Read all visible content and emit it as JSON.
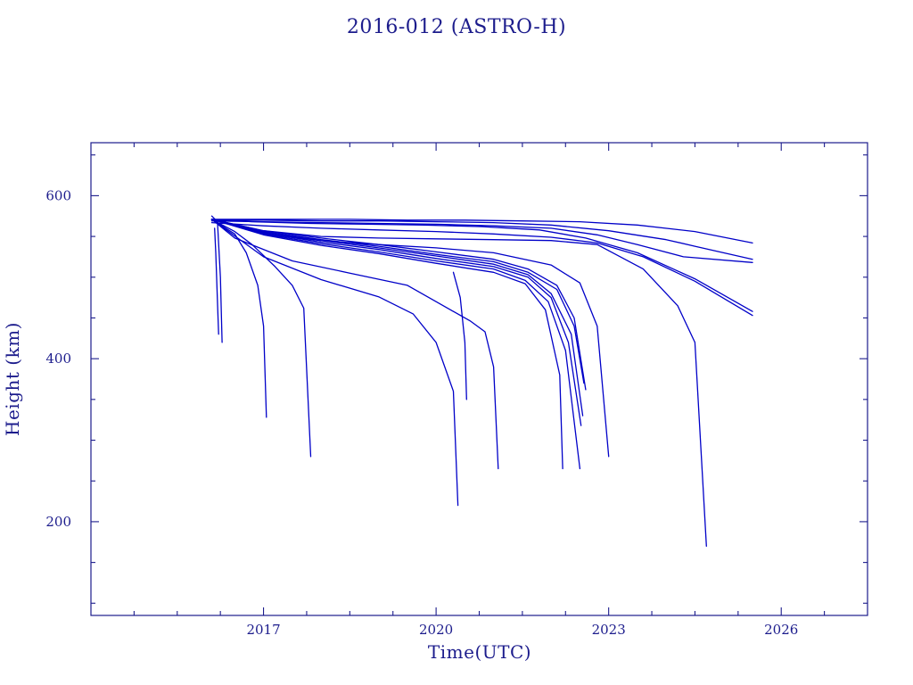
{
  "chart_data": {
    "type": "line",
    "title": "2016-012 (ASTRO-H)",
    "xlabel": "Time(UTC)",
    "ylabel": "Height (km)",
    "xlim": [
      2014,
      2027.5
    ],
    "ylim": [
      85,
      665
    ],
    "x_major_ticks": [
      2017,
      2020,
      2023,
      2026
    ],
    "x_minor_ticks": [
      2014.75,
      2015.5,
      2016.25,
      2017.75,
      2018.5,
      2019.25,
      2020.75,
      2021.5,
      2022.25,
      2023.75,
      2024.5,
      2025.25,
      2026.75
    ],
    "y_major_ticks": [
      200,
      400,
      600
    ],
    "y_minor_ticks": [
      100,
      150,
      250,
      300,
      350,
      450,
      500,
      550,
      650
    ],
    "grid": false,
    "legend": "none",
    "series": [
      {
        "x": [
          2016.1,
          2016.6,
          2017.5,
          2018.5,
          2019.5,
          2020.5,
          2021.5,
          2022.5,
          2023.5,
          2024.5,
          2025.5
        ],
        "y": [
          571,
          571,
          571,
          571,
          570,
          570,
          569,
          568,
          564,
          556,
          542
        ]
      },
      {
        "x": [
          2016.1,
          2017,
          2018,
          2019,
          2020,
          2021,
          2022,
          2023,
          2024,
          2024.5,
          2025.5
        ],
        "y": [
          570,
          570,
          569,
          569,
          568,
          567,
          564,
          557,
          546,
          538,
          522
        ]
      },
      {
        "x": [
          2016.1,
          2017,
          2018,
          2019,
          2020,
          2021,
          2022,
          2022.8,
          2023.5,
          2024.3,
          2025.5
        ],
        "y": [
          569,
          568,
          567,
          566,
          565,
          563,
          560,
          552,
          540,
          525,
          518
        ]
      },
      {
        "x": [
          2016.1,
          2016.8,
          2017.8,
          2018.8,
          2019.8,
          2020.8,
          2021.8,
          2022.6,
          2023.5,
          2024.5,
          2025.5
        ],
        "y": [
          571,
          568,
          566,
          565,
          564,
          562,
          558,
          548,
          530,
          498,
          458
        ]
      },
      {
        "x": [
          2016.1,
          2017,
          2018,
          2019,
          2020,
          2021,
          2022,
          2022.8,
          2023.6,
          2024.5,
          2025.5
        ],
        "y": [
          567,
          563,
          560,
          558,
          556,
          553,
          549,
          542,
          525,
          495,
          453
        ]
      },
      {
        "x": [
          2016.1,
          2017,
          2018,
          2019,
          2020,
          2021,
          2021.6,
          2022.1,
          2022.4,
          2022.6
        ],
        "y": [
          571,
          557,
          548,
          540,
          531,
          522,
          510,
          490,
          450,
          362
        ]
      },
      {
        "x": [
          2016.1,
          2017,
          2018,
          2019,
          2020,
          2021,
          2021.6,
          2022.1,
          2022.4,
          2022.57
        ],
        "y": [
          571,
          556,
          546,
          538,
          528,
          519,
          506,
          485,
          440,
          370
        ]
      },
      {
        "x": [
          2016.1,
          2017,
          2018,
          2019,
          2020,
          2021,
          2021.6,
          2022.0,
          2022.35,
          2022.55
        ],
        "y": [
          571,
          555,
          545,
          536,
          526,
          516,
          503,
          480,
          430,
          330
        ]
      },
      {
        "x": [
          2016.1,
          2017,
          2018,
          2019,
          2020,
          2021,
          2021.6,
          2022.0,
          2022.3,
          2022.52
        ],
        "y": [
          571,
          554,
          543,
          534,
          523,
          513,
          500,
          475,
          420,
          318
        ]
      },
      {
        "x": [
          2016.1,
          2017,
          2018,
          2019,
          2020,
          2021,
          2021.55,
          2021.95,
          2022.25,
          2022.5
        ],
        "y": [
          571,
          553,
          541,
          531,
          520,
          510,
          496,
          470,
          410,
          265
        ]
      },
      {
        "x": [
          2016.1,
          2017,
          2018,
          2019,
          2020,
          2021,
          2021.55,
          2021.9,
          2022.15,
          2022.2
        ],
        "y": [
          571,
          552,
          539,
          529,
          517,
          506,
          492,
          460,
          380,
          265
        ]
      },
      {
        "x": [
          2016.1,
          2017,
          2018,
          2019,
          2020,
          2021,
          2022,
          2022.5,
          2022.8,
          2023.0
        ],
        "y": [
          571,
          553,
          545,
          540,
          536,
          530,
          515,
          493,
          440,
          280
        ]
      },
      {
        "x": [
          2016.1,
          2016.5,
          2016.8,
          2017.2,
          2017.5,
          2017.7,
          2017.82
        ],
        "y": [
          571,
          556,
          540,
          513,
          490,
          462,
          280
        ]
      },
      {
        "x": [
          2016.1,
          2016.5,
          2016.7,
          2016.9,
          2017.0,
          2017.05
        ],
        "y": [
          571,
          553,
          530,
          490,
          440,
          328
        ]
      },
      {
        "x": [
          2016.1,
          2017,
          2018,
          2019,
          2019.6,
          2020.0,
          2020.3,
          2020.38
        ],
        "y": [
          571,
          525,
          497,
          476,
          455,
          420,
          360,
          220
        ]
      },
      {
        "x": [
          2016.1,
          2016.5,
          2017.5,
          2018.5,
          2019.5,
          2020,
          2020.6,
          2020.85,
          2021.0,
          2021.08
        ],
        "y": [
          571,
          548,
          520,
          505,
          490,
          470,
          446,
          433,
          390,
          265
        ]
      },
      {
        "x": [
          2016.1,
          2017,
          2018,
          2019,
          2020,
          2021,
          2022,
          2022.8,
          2023.6,
          2024.2,
          2024.5,
          2024.7
        ],
        "y": [
          571,
          557,
          550,
          548,
          547,
          546,
          545,
          540,
          510,
          465,
          420,
          170
        ]
      },
      {
        "x": [
          2020.3,
          2020.42,
          2020.5,
          2020.53
        ],
        "y": [
          506,
          475,
          420,
          350
        ]
      },
      {
        "x": [
          2016.1,
          2016.2,
          2016.25,
          2016.28
        ],
        "y": [
          575,
          568,
          500,
          420
        ]
      },
      {
        "x": [
          2016.15,
          2016.17,
          2016.2,
          2016.22
        ],
        "y": [
          560,
          530,
          470,
          430
        ]
      }
    ]
  }
}
